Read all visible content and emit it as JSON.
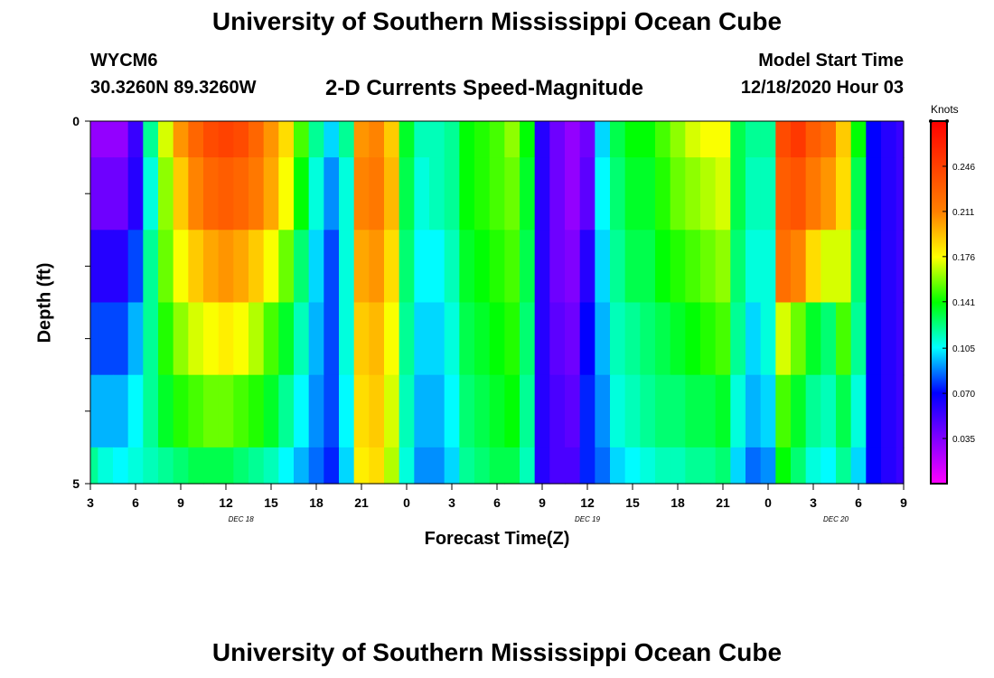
{
  "header": {
    "title_top": "University of Southern Mississippi Ocean Cube",
    "title_bottom": "University of Southern Mississippi Ocean Cube",
    "station": "WYCM6",
    "coords": "30.3260N 89.3260W",
    "subtitle": "2-D Currents Speed-Magnitude",
    "model_label": "Model Start Time",
    "model_date": "12/18/2020 Hour 03"
  },
  "chart_data": {
    "type": "heatmap",
    "title": "2-D Currents Speed-Magnitude",
    "xlabel": "Forecast Time(Z)",
    "ylabel": "Depth (ft)",
    "units": "Knots",
    "x_range_hours": [
      0,
      54
    ],
    "y_range": [
      0,
      5
    ],
    "x_tick_labels": [
      "3",
      "6",
      "9",
      "12",
      "15",
      "18",
      "21",
      "0",
      "3",
      "6",
      "9",
      "12",
      "15",
      "18",
      "21",
      "0",
      "3",
      "6",
      "9"
    ],
    "y_tick_labels": [
      "0",
      "5"
    ],
    "date_labels": [
      {
        "text": "DEC 18",
        "hour": 10
      },
      {
        "text": "DEC 19",
        "hour": 33
      },
      {
        "text": "DEC 20",
        "hour": 49.5
      }
    ],
    "colorbar": {
      "min": 0,
      "max": 0.281,
      "ticks": [
        0.035,
        0.07,
        0.105,
        0.141,
        0.176,
        0.211,
        0.246
      ],
      "tick_labels": [
        "0.035",
        "0.070",
        "0.105",
        "0.141",
        "0.176",
        "0.211",
        "0.246"
      ]
    },
    "rows": [
      {
        "top": 0,
        "bottom": 0.5
      },
      {
        "top": 0.5,
        "bottom": 1.5
      },
      {
        "top": 1.5,
        "bottom": 2.5
      },
      {
        "top": 2.5,
        "bottom": 3.5
      },
      {
        "top": 3.5,
        "bottom": 4.5
      },
      {
        "top": 4.5,
        "bottom": 5
      }
    ],
    "column_hours": [
      0,
      1,
      2,
      3,
      4,
      5,
      6,
      7,
      8,
      9,
      10,
      11,
      12,
      13,
      14,
      15,
      16,
      17,
      18,
      19,
      20,
      21,
      22,
      23,
      24,
      25,
      26,
      27,
      28,
      29,
      30,
      31,
      32,
      33,
      34,
      35,
      36,
      37,
      38,
      39,
      40,
      41,
      42,
      43,
      44,
      45,
      46,
      47,
      48,
      49,
      50,
      51,
      52,
      53,
      54
    ],
    "values": [
      [
        0.03,
        0.03,
        0.03,
        0.055,
        0.12,
        0.17,
        0.205,
        0.225,
        0.24,
        0.245,
        0.24,
        0.225,
        0.205,
        0.185,
        0.15,
        0.12,
        0.1,
        0.12,
        0.205,
        0.21,
        0.19,
        0.135,
        0.115,
        0.115,
        0.12,
        0.14,
        0.145,
        0.15,
        0.16,
        0.14,
        0.06,
        0.04,
        0.03,
        0.04,
        0.1,
        0.13,
        0.14,
        0.14,
        0.15,
        0.16,
        0.17,
        0.175,
        0.175,
        0.13,
        0.12,
        0.12,
        0.24,
        0.25,
        0.23,
        0.22,
        0.19,
        0.14,
        0.07,
        0.06,
        0.055
      ],
      [
        0.04,
        0.04,
        0.04,
        0.06,
        0.11,
        0.16,
        0.19,
        0.21,
        0.225,
        0.23,
        0.225,
        0.215,
        0.2,
        0.175,
        0.14,
        0.11,
        0.09,
        0.11,
        0.21,
        0.215,
        0.195,
        0.13,
        0.11,
        0.115,
        0.12,
        0.14,
        0.145,
        0.15,
        0.155,
        0.135,
        0.06,
        0.04,
        0.03,
        0.045,
        0.105,
        0.125,
        0.135,
        0.135,
        0.145,
        0.155,
        0.16,
        0.165,
        0.17,
        0.13,
        0.115,
        0.115,
        0.23,
        0.235,
        0.215,
        0.205,
        0.185,
        0.13,
        0.07,
        0.06,
        0.055
      ],
      [
        0.06,
        0.06,
        0.06,
        0.08,
        0.12,
        0.155,
        0.175,
        0.19,
        0.2,
        0.205,
        0.2,
        0.19,
        0.175,
        0.155,
        0.125,
        0.1,
        0.08,
        0.11,
        0.2,
        0.205,
        0.185,
        0.125,
        0.105,
        0.105,
        0.115,
        0.135,
        0.14,
        0.145,
        0.15,
        0.13,
        0.06,
        0.04,
        0.035,
        0.06,
        0.1,
        0.12,
        0.13,
        0.13,
        0.14,
        0.145,
        0.15,
        0.155,
        0.16,
        0.125,
        0.11,
        0.11,
        0.22,
        0.21,
        0.185,
        0.17,
        0.17,
        0.125,
        0.07,
        0.06,
        0.055
      ],
      [
        0.08,
        0.08,
        0.08,
        0.095,
        0.12,
        0.145,
        0.16,
        0.17,
        0.175,
        0.18,
        0.175,
        0.165,
        0.15,
        0.135,
        0.115,
        0.095,
        0.08,
        0.11,
        0.19,
        0.195,
        0.175,
        0.12,
        0.1,
        0.1,
        0.11,
        0.13,
        0.135,
        0.14,
        0.145,
        0.125,
        0.06,
        0.045,
        0.04,
        0.07,
        0.095,
        0.115,
        0.12,
        0.125,
        0.13,
        0.135,
        0.14,
        0.145,
        0.15,
        0.12,
        0.1,
        0.11,
        0.17,
        0.155,
        0.135,
        0.125,
        0.15,
        0.12,
        0.07,
        0.06,
        0.055
      ],
      [
        0.095,
        0.095,
        0.095,
        0.105,
        0.12,
        0.135,
        0.145,
        0.15,
        0.155,
        0.155,
        0.15,
        0.145,
        0.135,
        0.12,
        0.105,
        0.09,
        0.08,
        0.105,
        0.185,
        0.19,
        0.17,
        0.115,
        0.095,
        0.095,
        0.105,
        0.125,
        0.13,
        0.135,
        0.14,
        0.12,
        0.06,
        0.05,
        0.045,
        0.075,
        0.09,
        0.11,
        0.115,
        0.12,
        0.125,
        0.125,
        0.13,
        0.13,
        0.135,
        0.11,
        0.095,
        0.1,
        0.15,
        0.135,
        0.12,
        0.115,
        0.13,
        0.11,
        0.07,
        0.06,
        0.055
      ],
      [
        0.12,
        0.11,
        0.105,
        0.11,
        0.115,
        0.12,
        0.125,
        0.13,
        0.13,
        0.13,
        0.125,
        0.12,
        0.115,
        0.105,
        0.095,
        0.085,
        0.075,
        0.1,
        0.18,
        0.185,
        0.165,
        0.11,
        0.09,
        0.09,
        0.1,
        0.12,
        0.125,
        0.13,
        0.13,
        0.115,
        0.06,
        0.05,
        0.05,
        0.075,
        0.085,
        0.1,
        0.105,
        0.11,
        0.115,
        0.115,
        0.12,
        0.12,
        0.125,
        0.1,
        0.085,
        0.09,
        0.14,
        0.125,
        0.11,
        0.105,
        0.12,
        0.1,
        0.07,
        0.06,
        0.055
      ]
    ]
  }
}
